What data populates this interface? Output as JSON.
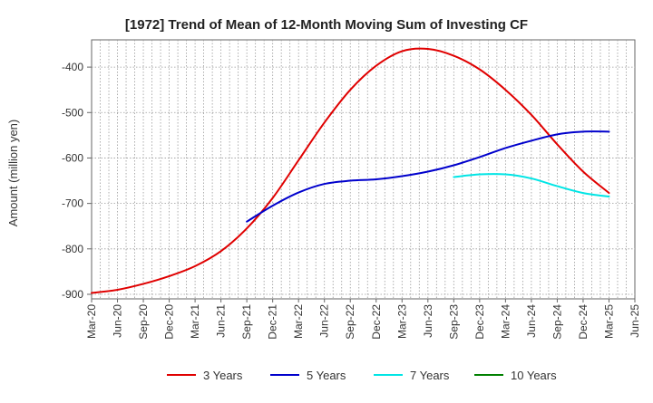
{
  "chart_data": {
    "type": "line",
    "title": "[1972]  Trend of Mean of 12-Month Moving Sum of Investing CF",
    "xlabel": "",
    "ylabel": "Amount (million yen)",
    "ylim": [
      -910,
      -340
    ],
    "yticks": [
      -400,
      -500,
      -600,
      -700,
      -800,
      -900
    ],
    "ytick_labels": [
      "-400",
      "-500",
      "-600",
      "-700",
      "-800",
      "-900"
    ],
    "grid": true,
    "legend_position": "bottom",
    "x_categories": [
      "Mar-20",
      "Jun-20",
      "Sep-20",
      "Dec-20",
      "Mar-21",
      "Jun-21",
      "Sep-21",
      "Dec-21",
      "Mar-22",
      "Jun-22",
      "Sep-22",
      "Dec-22",
      "Mar-23",
      "Jun-23",
      "Sep-23",
      "Dec-23",
      "Mar-24",
      "Jun-24",
      "Sep-24",
      "Dec-24",
      "Mar-25",
      "Jun-25"
    ],
    "series": [
      {
        "name": "3 Years",
        "color": "#e00000",
        "start_index": 0,
        "values": [
          -897,
          -890,
          -877,
          -860,
          -838,
          -805,
          -755,
          -688,
          -605,
          -522,
          -450,
          -397,
          -365,
          -360,
          -375,
          -405,
          -450,
          -505,
          -570,
          -630,
          -677
        ]
      },
      {
        "name": "5 Years",
        "color": "#0000cc",
        "start_index": 6,
        "values": [
          -740,
          -705,
          -676,
          -657,
          -650,
          -647,
          -640,
          -630,
          -616,
          -598,
          -578,
          -562,
          -548,
          -542,
          -542
        ]
      },
      {
        "name": "7 Years",
        "color": "#00e5e5",
        "start_index": 14,
        "values": [
          -642,
          -636,
          -636,
          -645,
          -662,
          -677,
          -685
        ]
      },
      {
        "name": "10 Years",
        "color": "#008000",
        "start_index": 0,
        "values": []
      }
    ]
  }
}
